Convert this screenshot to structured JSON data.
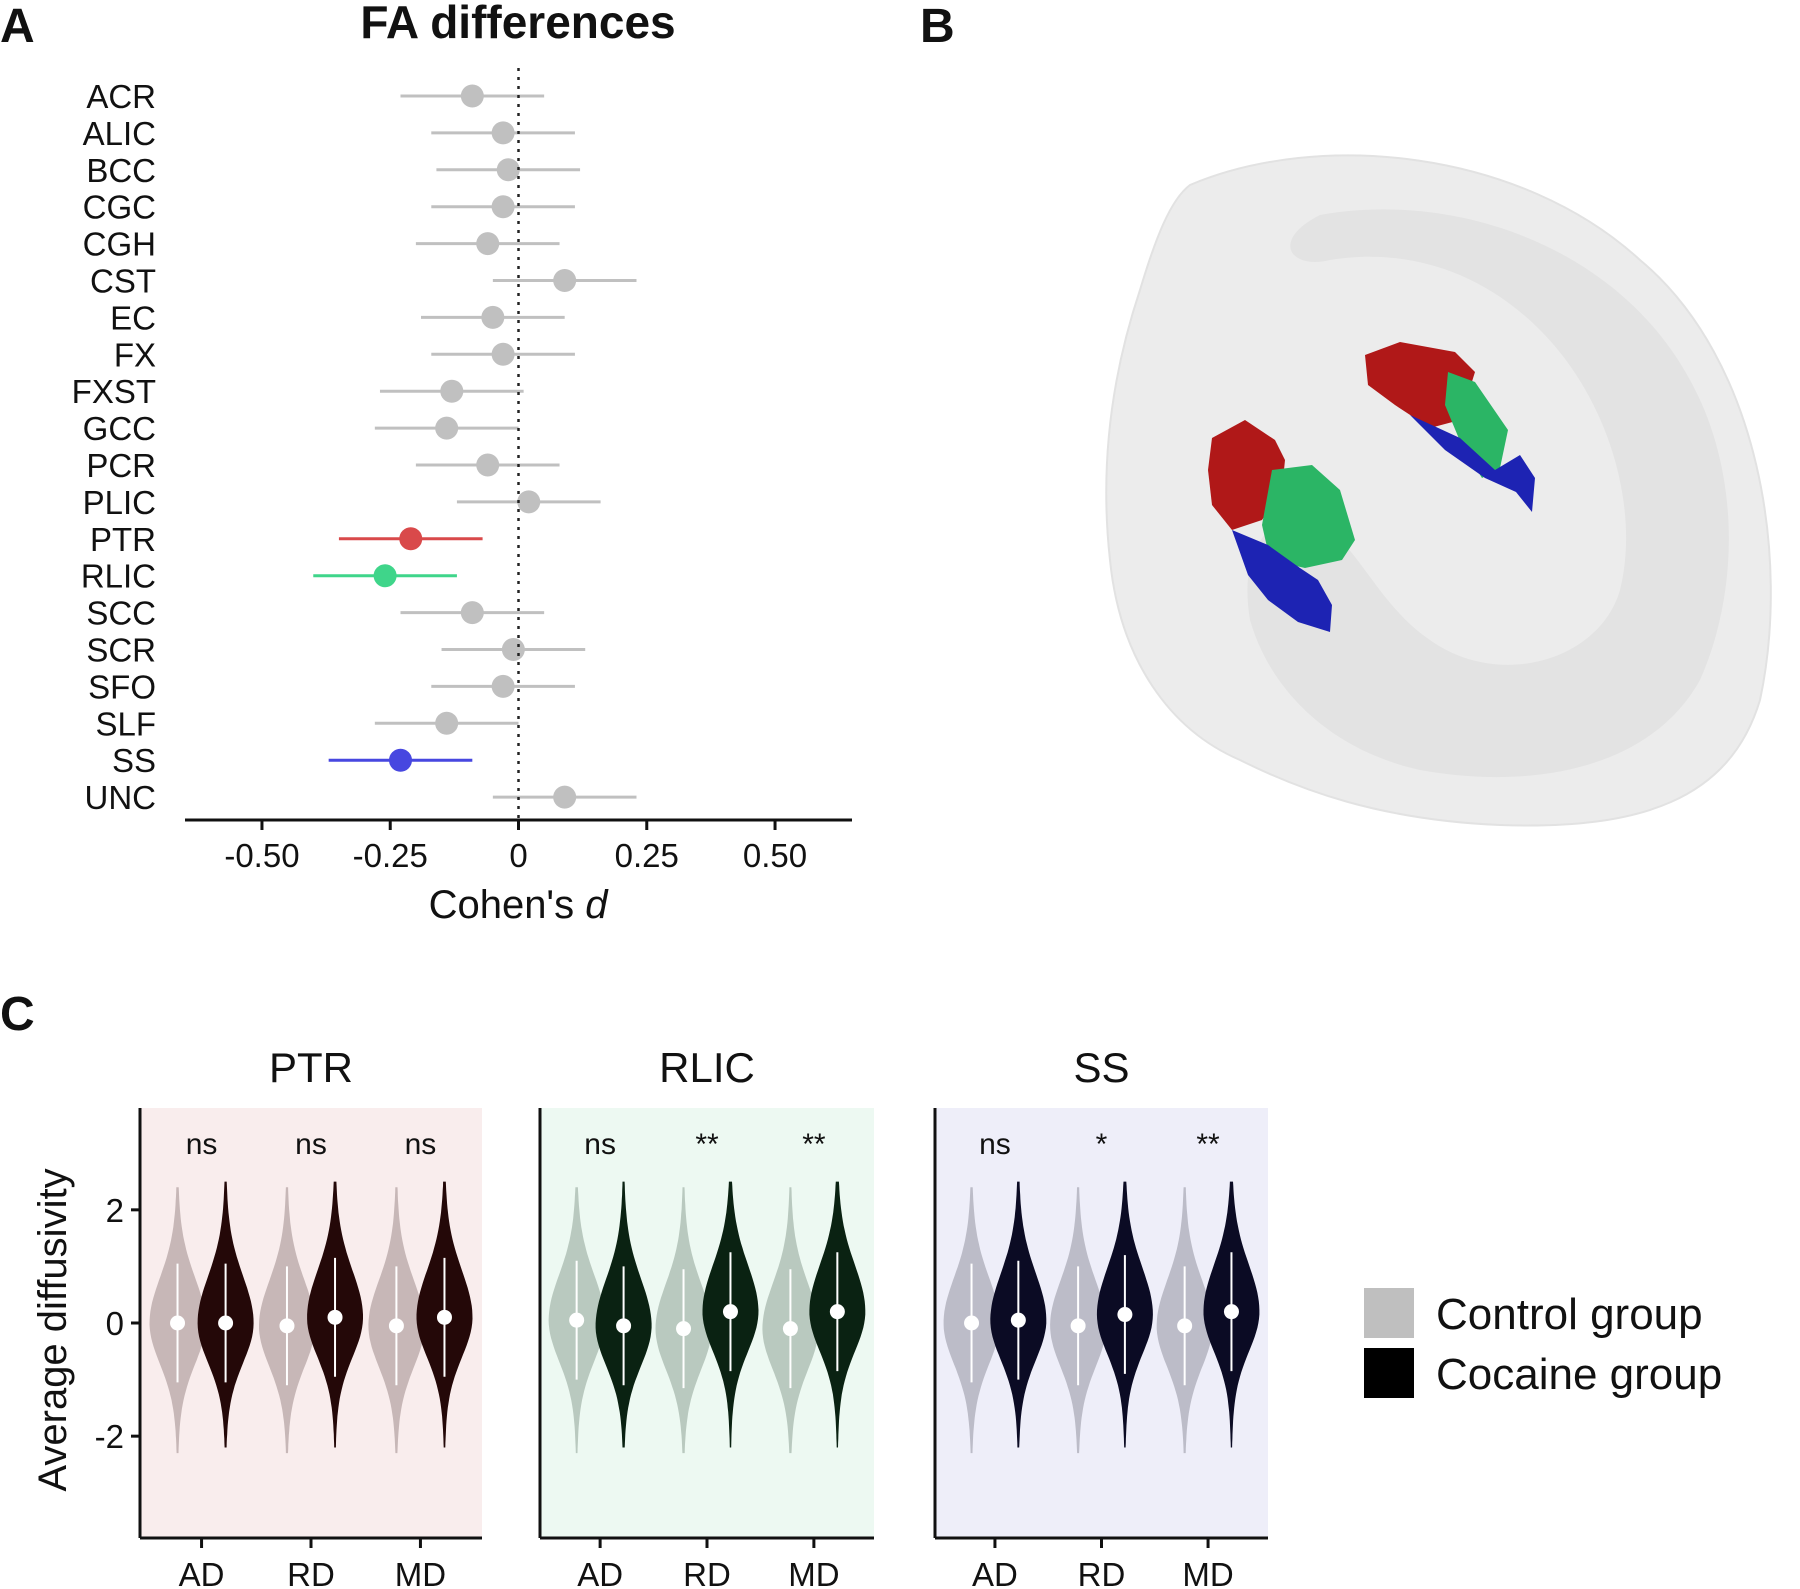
{
  "panels": {
    "a": "A",
    "b": "B",
    "c": "C"
  },
  "colors": {
    "ptr": "#d9494a",
    "rlic": "#3fd58a",
    "ss": "#4747e0",
    "neutral": "#c0c0c0"
  },
  "chart_data": [
    {
      "type": "scatter",
      "subtype": "forest_plot",
      "title": "FA differences",
      "xlabel": "Cohen's d",
      "xlim": [
        -0.65,
        0.65
      ],
      "xticks": [
        -0.5,
        -0.25,
        0,
        0.25,
        0.5
      ],
      "xtick_labels": [
        "-0.50",
        "-0.25",
        "0",
        "0.25",
        "0.50"
      ],
      "reference_line": 0,
      "categories": [
        "ACR",
        "ALIC",
        "BCC",
        "CGC",
        "CGH",
        "CST",
        "EC",
        "FX",
        "FXST",
        "GCC",
        "PCR",
        "PLIC",
        "PTR",
        "RLIC",
        "SCC",
        "SCR",
        "SFO",
        "SLF",
        "SS",
        "UNC"
      ],
      "estimates": [
        -0.09,
        -0.03,
        -0.02,
        -0.03,
        -0.06,
        0.09,
        -0.05,
        -0.03,
        -0.13,
        -0.14,
        -0.06,
        0.02,
        -0.21,
        -0.26,
        -0.09,
        -0.01,
        -0.03,
        -0.14,
        -0.23,
        0.09
      ],
      "ci_low": [
        -0.23,
        -0.17,
        -0.16,
        -0.17,
        -0.2,
        -0.05,
        -0.19,
        -0.17,
        -0.27,
        -0.28,
        -0.2,
        -0.12,
        -0.35,
        -0.4,
        -0.23,
        -0.15,
        -0.17,
        -0.28,
        -0.37,
        -0.05
      ],
      "ci_high": [
        0.05,
        0.11,
        0.12,
        0.11,
        0.08,
        0.23,
        0.09,
        0.11,
        0.01,
        0.0,
        0.08,
        0.16,
        -0.07,
        -0.12,
        0.05,
        0.13,
        0.11,
        0.0,
        -0.09,
        0.23
      ],
      "highlight": {
        "PTR": "ptr",
        "RLIC": "rlic",
        "SS": "ss"
      }
    },
    {
      "type": "violin",
      "ylabel": "Average diffusivity",
      "ylim": [
        -3.8,
        3.8
      ],
      "yticks": [
        -2,
        0,
        2
      ],
      "ytick_labels": [
        "-2",
        "0",
        "2"
      ],
      "categories": [
        "AD",
        "RD",
        "MD"
      ],
      "legend": {
        "position": "right",
        "entries": [
          {
            "label": "Control group",
            "color": "#bfbfbf"
          },
          {
            "label": "Cocaine group",
            "color": "#000000"
          }
        ]
      },
      "panels": [
        {
          "title": "PTR",
          "background": "#f9eded",
          "control_color": "#c7b7b7",
          "cocaine_color": "#240808",
          "significance": [
            "ns",
            "ns",
            "ns"
          ],
          "control_median": [
            0.0,
            -0.05,
            -0.05
          ],
          "cocaine_median": [
            0.0,
            0.1,
            0.1
          ]
        },
        {
          "title": "RLIC",
          "background": "#edf9f2",
          "control_color": "#b9c9bf",
          "cocaine_color": "#0a2212",
          "significance": [
            "ns",
            "**",
            "**"
          ],
          "control_median": [
            0.05,
            -0.1,
            -0.1
          ],
          "cocaine_median": [
            -0.05,
            0.2,
            0.2
          ]
        },
        {
          "title": "SS",
          "background": "#eeeef9",
          "control_color": "#bcbcc8",
          "cocaine_color": "#0b0b24",
          "significance": [
            "ns",
            "*",
            "**"
          ],
          "control_median": [
            0.0,
            -0.05,
            -0.05
          ],
          "cocaine_median": [
            0.05,
            0.15,
            0.2
          ]
        }
      ]
    }
  ]
}
